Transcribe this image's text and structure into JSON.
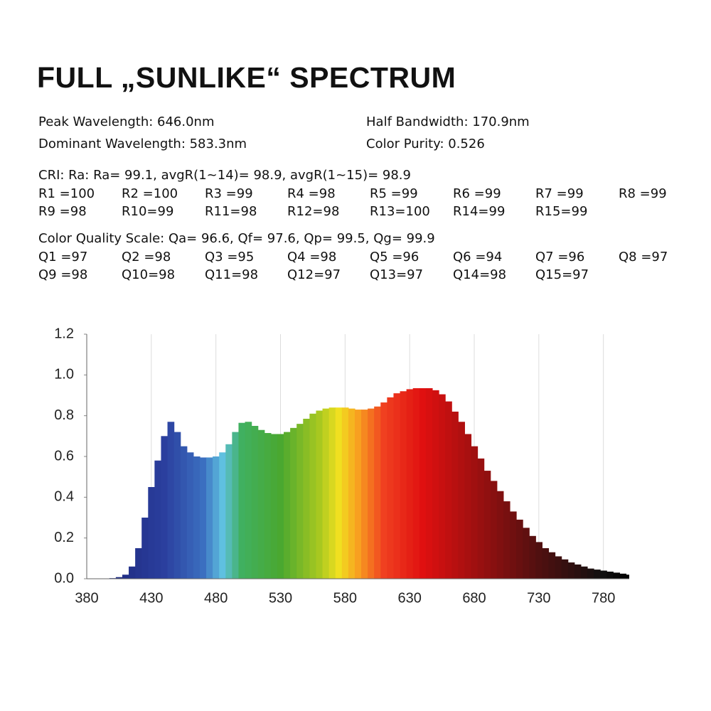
{
  "title": "FULL „SUNLIKE“ SPECTRUM",
  "specs": [
    [
      "Peak Wavelength: 646.0nm",
      "Half Bandwidth: 170.9nm"
    ],
    [
      "Dominant Wavelength: 583.3nm",
      "Color Purity: 0.526"
    ]
  ],
  "cri": {
    "summary": "CRI: Ra: Ra= 99.1, avgR(1~14)= 98.9, avgR(1~15)= 98.9",
    "items": [
      "R1 =100",
      "R2 =100",
      "R3 =99",
      "R4 =98",
      "R5 =99",
      "R6 =99",
      "R7 =99",
      "R8 =99",
      "R9 =98",
      "R10=99",
      "R11=98",
      "R12=98",
      "R13=100",
      "R14=99",
      "R15=99"
    ]
  },
  "cqs": {
    "summary": "Color Quality Scale: Qa= 96.6, Qf= 97.6, Qp= 99.5, Qg= 99.9",
    "items": [
      "Q1 =97",
      "Q2 =98",
      "Q3 =95",
      "Q4 =98",
      "Q5 =96",
      "Q6 =94",
      "Q7 =96",
      "Q8 =97",
      "Q9 =98",
      "Q10=98",
      "Q11=98",
      "Q12=97",
      "Q13=97",
      "Q14=98",
      "Q15=97"
    ]
  },
  "chart_data": {
    "type": "spectrum",
    "x": [
      380,
      385,
      390,
      395,
      400,
      405,
      410,
      415,
      420,
      425,
      430,
      435,
      440,
      445,
      450,
      455,
      460,
      465,
      470,
      475,
      480,
      485,
      490,
      495,
      500,
      505,
      510,
      515,
      520,
      525,
      530,
      535,
      540,
      545,
      550,
      555,
      560,
      565,
      570,
      575,
      580,
      585,
      590,
      595,
      600,
      605,
      610,
      615,
      620,
      625,
      630,
      635,
      640,
      645,
      650,
      655,
      660,
      665,
      670,
      675,
      680,
      685,
      690,
      695,
      700,
      705,
      710,
      715,
      720,
      725,
      730,
      735,
      740,
      745,
      750,
      755,
      760,
      765,
      770,
      775,
      780,
      785,
      790,
      795,
      800
    ],
    "values": [
      0,
      0,
      0,
      0,
      0.003,
      0.008,
      0.02,
      0.06,
      0.15,
      0.3,
      0.45,
      0.58,
      0.7,
      0.77,
      0.72,
      0.65,
      0.62,
      0.6,
      0.595,
      0.595,
      0.6,
      0.62,
      0.66,
      0.72,
      0.765,
      0.77,
      0.75,
      0.73,
      0.715,
      0.71,
      0.71,
      0.72,
      0.74,
      0.76,
      0.785,
      0.81,
      0.825,
      0.835,
      0.84,
      0.84,
      0.84,
      0.835,
      0.83,
      0.83,
      0.835,
      0.845,
      0.865,
      0.89,
      0.91,
      0.92,
      0.93,
      0.935,
      0.935,
      0.935,
      0.925,
      0.905,
      0.87,
      0.82,
      0.77,
      0.71,
      0.65,
      0.59,
      0.53,
      0.48,
      0.43,
      0.38,
      0.33,
      0.29,
      0.25,
      0.21,
      0.18,
      0.15,
      0.13,
      0.11,
      0.095,
      0.08,
      0.07,
      0.06,
      0.05,
      0.045,
      0.04,
      0.035,
      0.03,
      0.025,
      0.02
    ],
    "xlim": [
      380,
      800
    ],
    "xticks": [
      380,
      430,
      480,
      530,
      580,
      630,
      680,
      730,
      780
    ],
    "ylim": [
      0,
      1.2
    ],
    "yticks": [
      {
        "value": 0,
        "label": "0.0"
      },
      0.2,
      0.4,
      0.6,
      0.8,
      {
        "value": 1,
        "label": "1.0"
      },
      1.2
    ],
    "grid": "x"
  }
}
